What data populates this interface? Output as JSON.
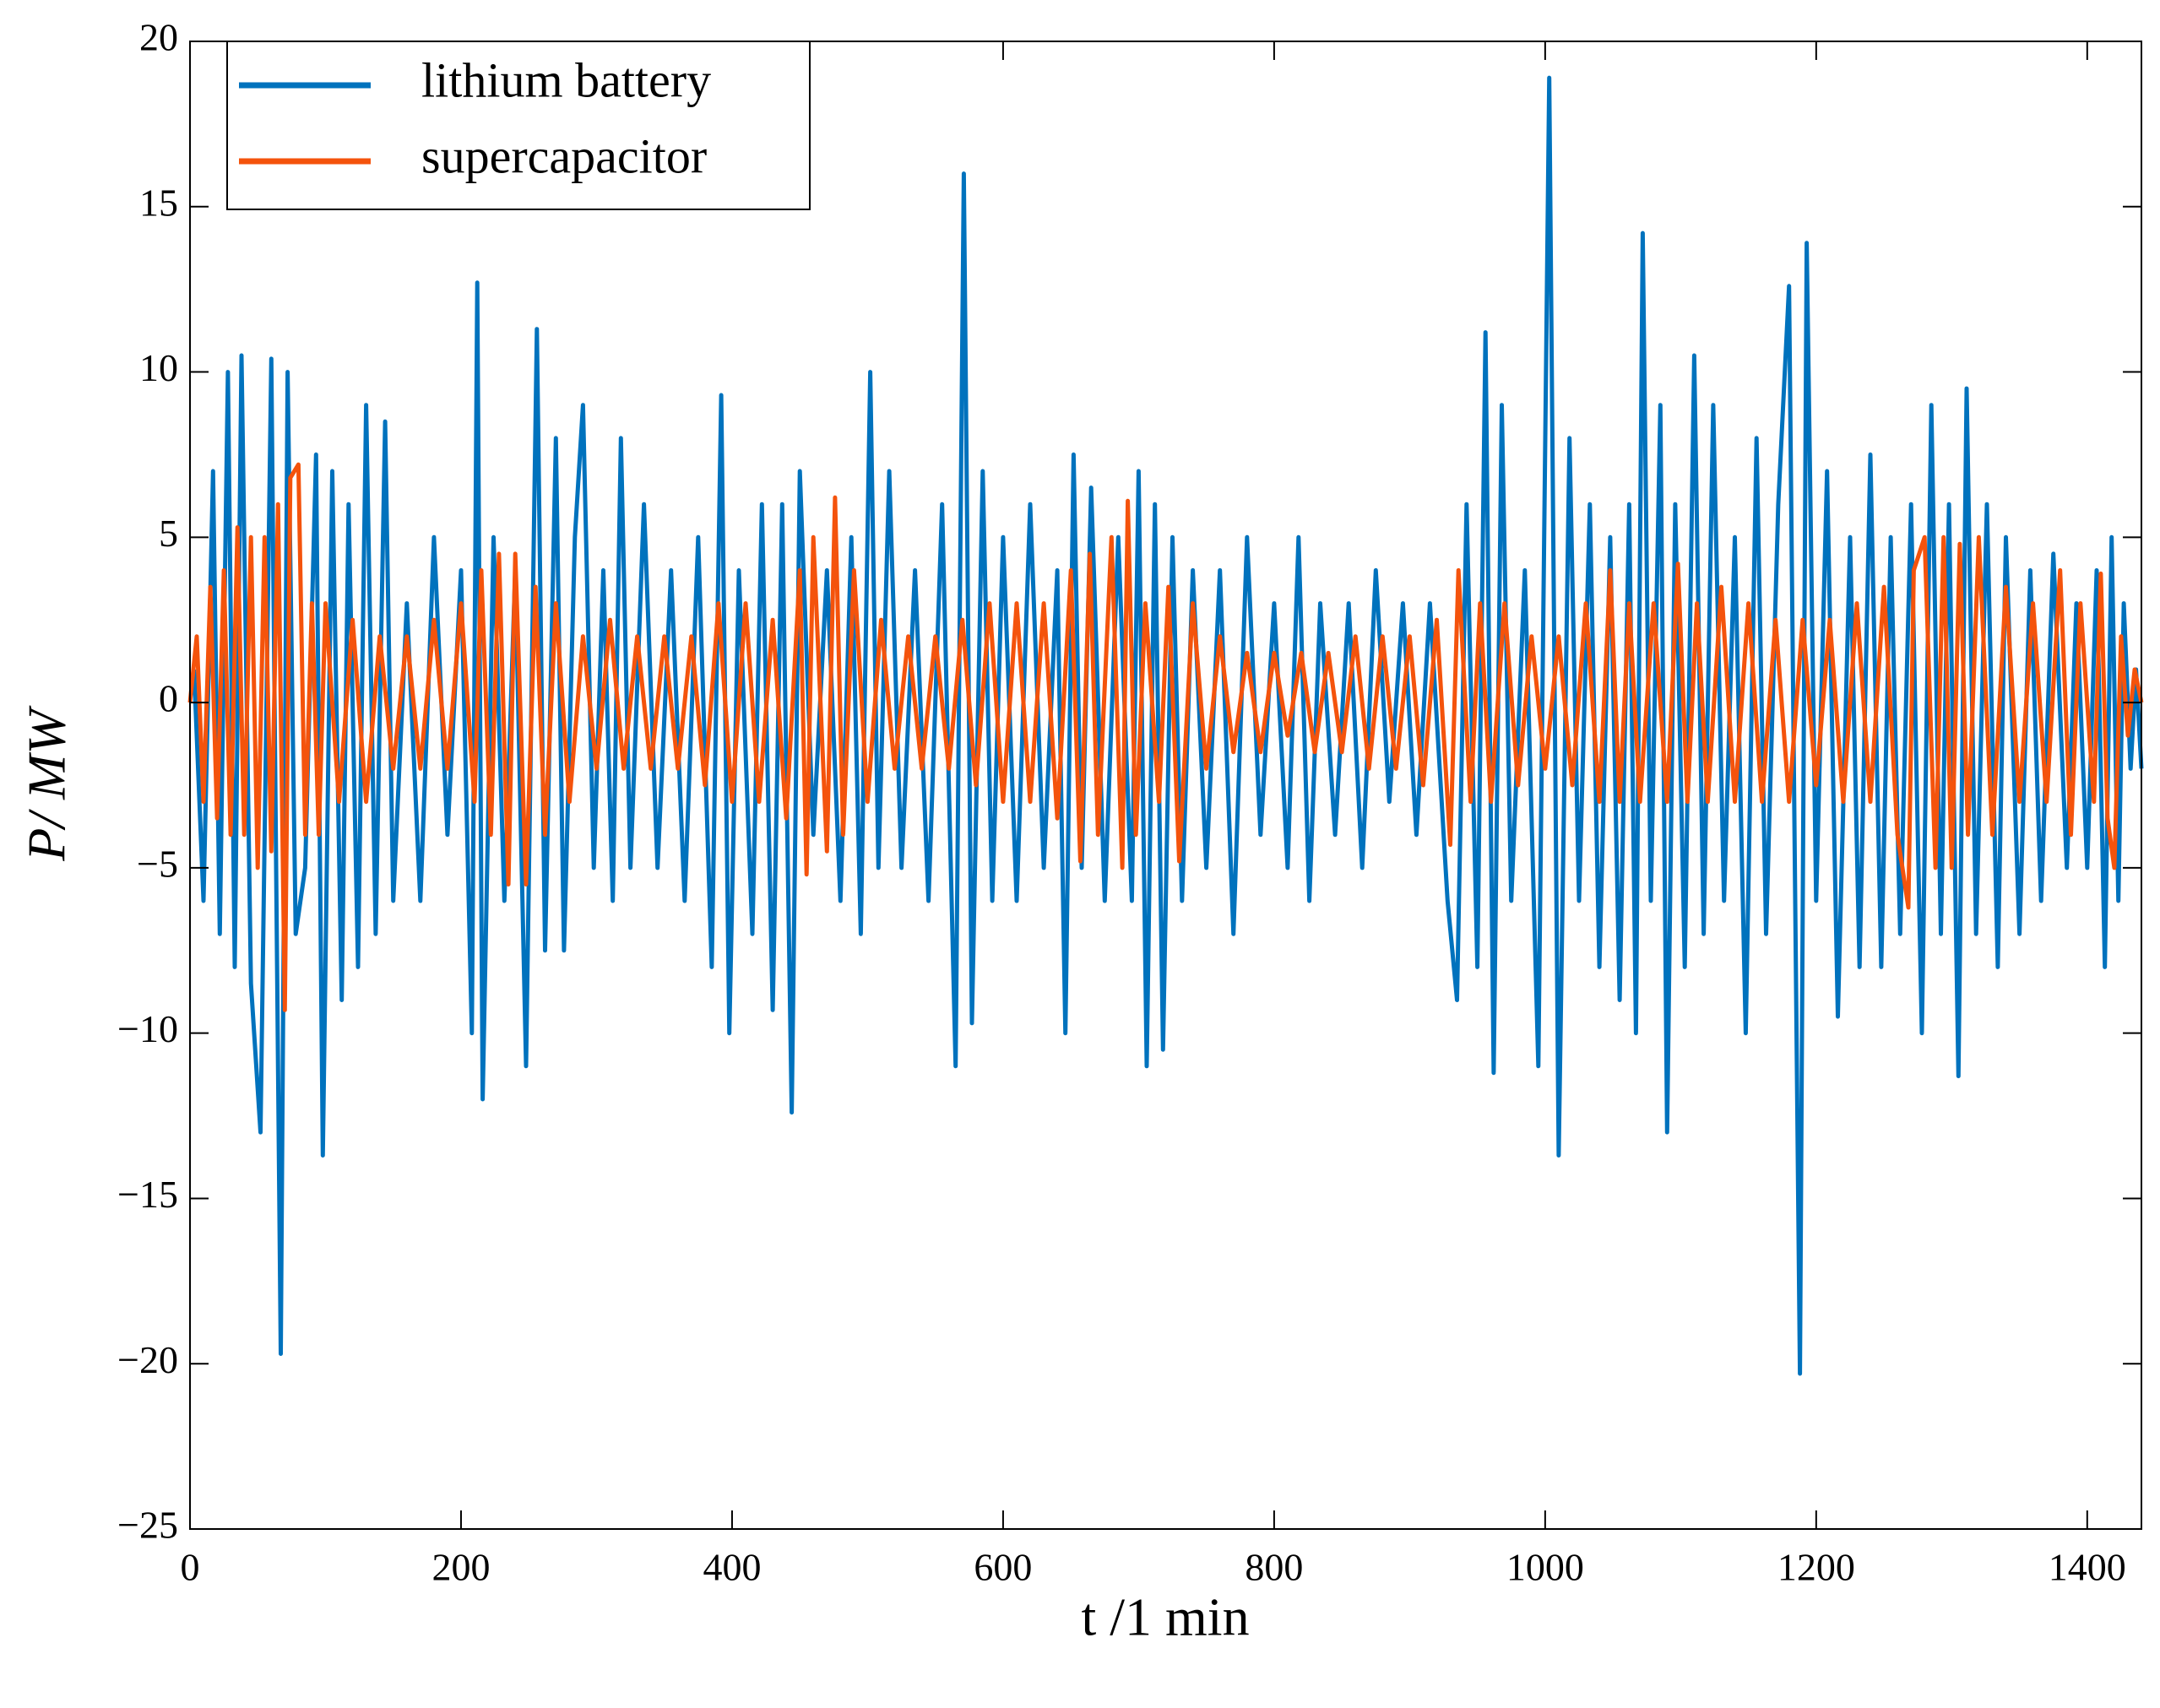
{
  "chart_data": {
    "type": "line",
    "xlabel": "t /1 min",
    "ylabel": "P/ MW",
    "xlim": [
      0,
      1440
    ],
    "xticks": [
      0,
      200,
      400,
      600,
      800,
      1000,
      1200,
      1400
    ],
    "ylim": [
      -25,
      20
    ],
    "yticks": [
      {
        "value": -25,
        "label": "−25"
      },
      {
        "value": -20,
        "label": "−20"
      },
      {
        "value": -15,
        "label": "−15"
      },
      {
        "value": -10,
        "label": "−10"
      },
      {
        "value": -5,
        "label": "−5"
      },
      0,
      5,
      10,
      15,
      20
    ],
    "legend": "upper left",
    "series": [
      {
        "name": "lithium battery",
        "color": "#0072bd",
        "x": [
          3,
          10,
          17,
          22,
          28,
          33,
          38,
          45,
          52,
          60,
          67,
          72,
          78,
          85,
          93,
          98,
          105,
          112,
          117,
          124,
          130,
          137,
          144,
          150,
          160,
          170,
          180,
          190,
          200,
          208,
          212,
          216,
          224,
          232,
          240,
          248,
          256,
          262,
          270,
          276,
          284,
          290,
          298,
          305,
          312,
          318,
          325,
          335,
          345,
          355,
          365,
          375,
          385,
          392,
          398,
          405,
          415,
          422,
          430,
          437,
          444,
          450,
          460,
          470,
          480,
          488,
          495,
          502,
          508,
          516,
          525,
          535,
          545,
          555,
          565,
          571,
          577,
          585,
          592,
          600,
          610,
          620,
          630,
          640,
          646,
          652,
          658,
          665,
          675,
          685,
          695,
          700,
          706,
          712,
          718,
          725,
          732,
          740,
          750,
          760,
          770,
          780,
          790,
          800,
          810,
          818,
          826,
          834,
          845,
          855,
          865,
          875,
          885,
          895,
          905,
          915,
          928,
          935,
          942,
          950,
          956,
          962,
          968,
          975,
          985,
          995,
          1003,
          1010,
          1018,
          1025,
          1033,
          1040,
          1048,
          1055,
          1062,
          1067,
          1072,
          1078,
          1085,
          1090,
          1096,
          1103,
          1110,
          1117,
          1124,
          1132,
          1140,
          1148,
          1156,
          1163,
          1172,
          1180,
          1188,
          1193,
          1200,
          1208,
          1216,
          1225,
          1232,
          1240,
          1248,
          1255,
          1262,
          1270,
          1278,
          1285,
          1292,
          1298,
          1305,
          1311,
          1318,
          1326,
          1334,
          1340,
          1350,
          1358,
          1366,
          1375,
          1385,
          1392,
          1400,
          1407,
          1413,
          1418,
          1423,
          1427,
          1432,
          1436,
          1440
        ],
        "values": [
          1,
          -6,
          7,
          -7,
          10,
          -8,
          10.5,
          -8.5,
          -13,
          10.4,
          -19.7,
          10,
          -7,
          -5,
          7.5,
          -13.7,
          7,
          -9,
          6,
          -8,
          9,
          -7,
          8.5,
          -6,
          3,
          -6,
          5,
          -4,
          4,
          -10,
          12.7,
          -12,
          5,
          -6,
          4,
          -11,
          11.3,
          -7.5,
          8,
          -7.5,
          5,
          9,
          -5,
          4,
          -6,
          8,
          -5,
          6,
          -5,
          4,
          -6,
          5,
          -8,
          9.3,
          -10,
          4,
          -7,
          6,
          -9.3,
          6,
          -12.4,
          7,
          -4,
          4,
          -6,
          5,
          -7,
          10,
          -5,
          7,
          -5,
          4,
          -6,
          6,
          -11,
          16,
          -9.7,
          7,
          -6,
          5,
          -6,
          6,
          -5,
          4,
          -10,
          7.5,
          -5,
          6.5,
          -6,
          5,
          -6,
          7,
          -11,
          6,
          -10.5,
          5,
          -6,
          4,
          -5,
          4,
          -7,
          5,
          -4,
          3,
          -5,
          5,
          -6,
          3,
          -4,
          3,
          -5,
          4,
          -3,
          3,
          -4,
          3,
          -6,
          -9,
          6,
          -8,
          11.2,
          -11.2,
          9,
          -6,
          4,
          -11,
          18.9,
          -13.7,
          8,
          -6,
          6,
          -8,
          5,
          -9,
          6,
          -10,
          14.2,
          -6,
          9,
          -13,
          6,
          -8,
          10.5,
          -7,
          9,
          -6,
          5,
          -10,
          8,
          -7,
          6,
          12.6,
          -20.3,
          13.9,
          -6,
          7,
          -9.5,
          5,
          -8,
          7.5,
          -8,
          5,
          -7,
          6,
          -10,
          9,
          -7,
          6,
          -11.3,
          9.5,
          -7,
          6,
          -8,
          5,
          -7,
          4,
          -6,
          4.5,
          -5,
          3,
          -5,
          4,
          -8,
          5,
          -6,
          3,
          -2,
          1,
          -2
        ]
      },
      {
        "name": "supercapacitor",
        "color": "#f4530c",
        "x": [
          0,
          5,
          10,
          15,
          20,
          25,
          30,
          35,
          40,
          45,
          50,
          55,
          60,
          65,
          70,
          74,
          80,
          85,
          90,
          95,
          100,
          110,
          120,
          130,
          140,
          150,
          160,
          170,
          180,
          190,
          200,
          210,
          215,
          222,
          228,
          235,
          240,
          248,
          255,
          262,
          270,
          280,
          290,
          300,
          310,
          320,
          330,
          340,
          350,
          360,
          370,
          380,
          390,
          400,
          410,
          420,
          430,
          440,
          450,
          455,
          460,
          470,
          476,
          482,
          490,
          500,
          510,
          520,
          530,
          540,
          550,
          560,
          570,
          580,
          590,
          600,
          610,
          620,
          630,
          640,
          650,
          657,
          664,
          670,
          680,
          688,
          692,
          698,
          705,
          715,
          722,
          730,
          740,
          750,
          760,
          770,
          780,
          790,
          800,
          810,
          820,
          830,
          840,
          850,
          860,
          870,
          880,
          890,
          900,
          910,
          920,
          930,
          936,
          945,
          952,
          960,
          970,
          980,
          990,
          1000,
          1010,
          1020,
          1030,
          1040,
          1048,
          1055,
          1062,
          1070,
          1080,
          1090,
          1098,
          1105,
          1112,
          1120,
          1130,
          1140,
          1150,
          1160,
          1170,
          1180,
          1190,
          1200,
          1210,
          1220,
          1230,
          1240,
          1250,
          1260,
          1268,
          1272,
          1280,
          1288,
          1294,
          1300,
          1306,
          1312,
          1320,
          1330,
          1340,
          1350,
          1360,
          1370,
          1380,
          1388,
          1395,
          1405,
          1410,
          1415,
          1420,
          1425,
          1430,
          1435,
          1440
        ],
        "values": [
          0,
          2,
          -3,
          3.5,
          -3.5,
          4,
          -4,
          5.3,
          -4,
          5,
          -5,
          5,
          -4.5,
          6,
          -9.3,
          6.8,
          7.2,
          -4,
          3,
          -4,
          3,
          -3,
          2.5,
          -3,
          2,
          -2,
          2,
          -2,
          2.5,
          -2,
          3,
          -3,
          4,
          -4,
          4.5,
          -5.5,
          4.5,
          -5.5,
          3.5,
          -4,
          3,
          -3,
          2,
          -2,
          2.5,
          -2,
          2,
          -2,
          2,
          -2,
          2,
          -2.5,
          3,
          -3,
          3,
          -3,
          2.5,
          -3.5,
          4,
          -5.2,
          5,
          -4.5,
          6.2,
          -4,
          4,
          -3,
          2.5,
          -2,
          2,
          -2,
          2,
          -2,
          2.5,
          -2.5,
          3,
          -3,
          3,
          -3,
          3,
          -3.5,
          4,
          -4.8,
          4.5,
          -4,
          5,
          -5,
          6.1,
          -4,
          3,
          -3,
          3.5,
          -4.8,
          3,
          -2,
          2,
          -1.5,
          1.5,
          -1.5,
          1.5,
          -1,
          1.5,
          -1.5,
          1.5,
          -1.5,
          2,
          -2,
          2,
          -2,
          2,
          -2.5,
          2.5,
          -4.3,
          4,
          -3,
          3,
          -3,
          3,
          -2.5,
          2,
          -2,
          2,
          -2.5,
          3,
          -3,
          4,
          -3,
          3,
          -3,
          3,
          -3,
          4.2,
          -3,
          3,
          -3,
          3.5,
          -3,
          3,
          -3,
          2.5,
          -3,
          2.5,
          -2.5,
          2.5,
          -3,
          3,
          -3,
          3.5,
          -4,
          -6.2,
          4,
          5,
          -5,
          5,
          -5,
          4.8,
          -4,
          5,
          -4,
          3.5,
          -3,
          3,
          -3,
          4,
          -4,
          3,
          -3,
          3.9,
          -3.5,
          -5,
          2,
          -1,
          1,
          0
        ]
      }
    ]
  }
}
